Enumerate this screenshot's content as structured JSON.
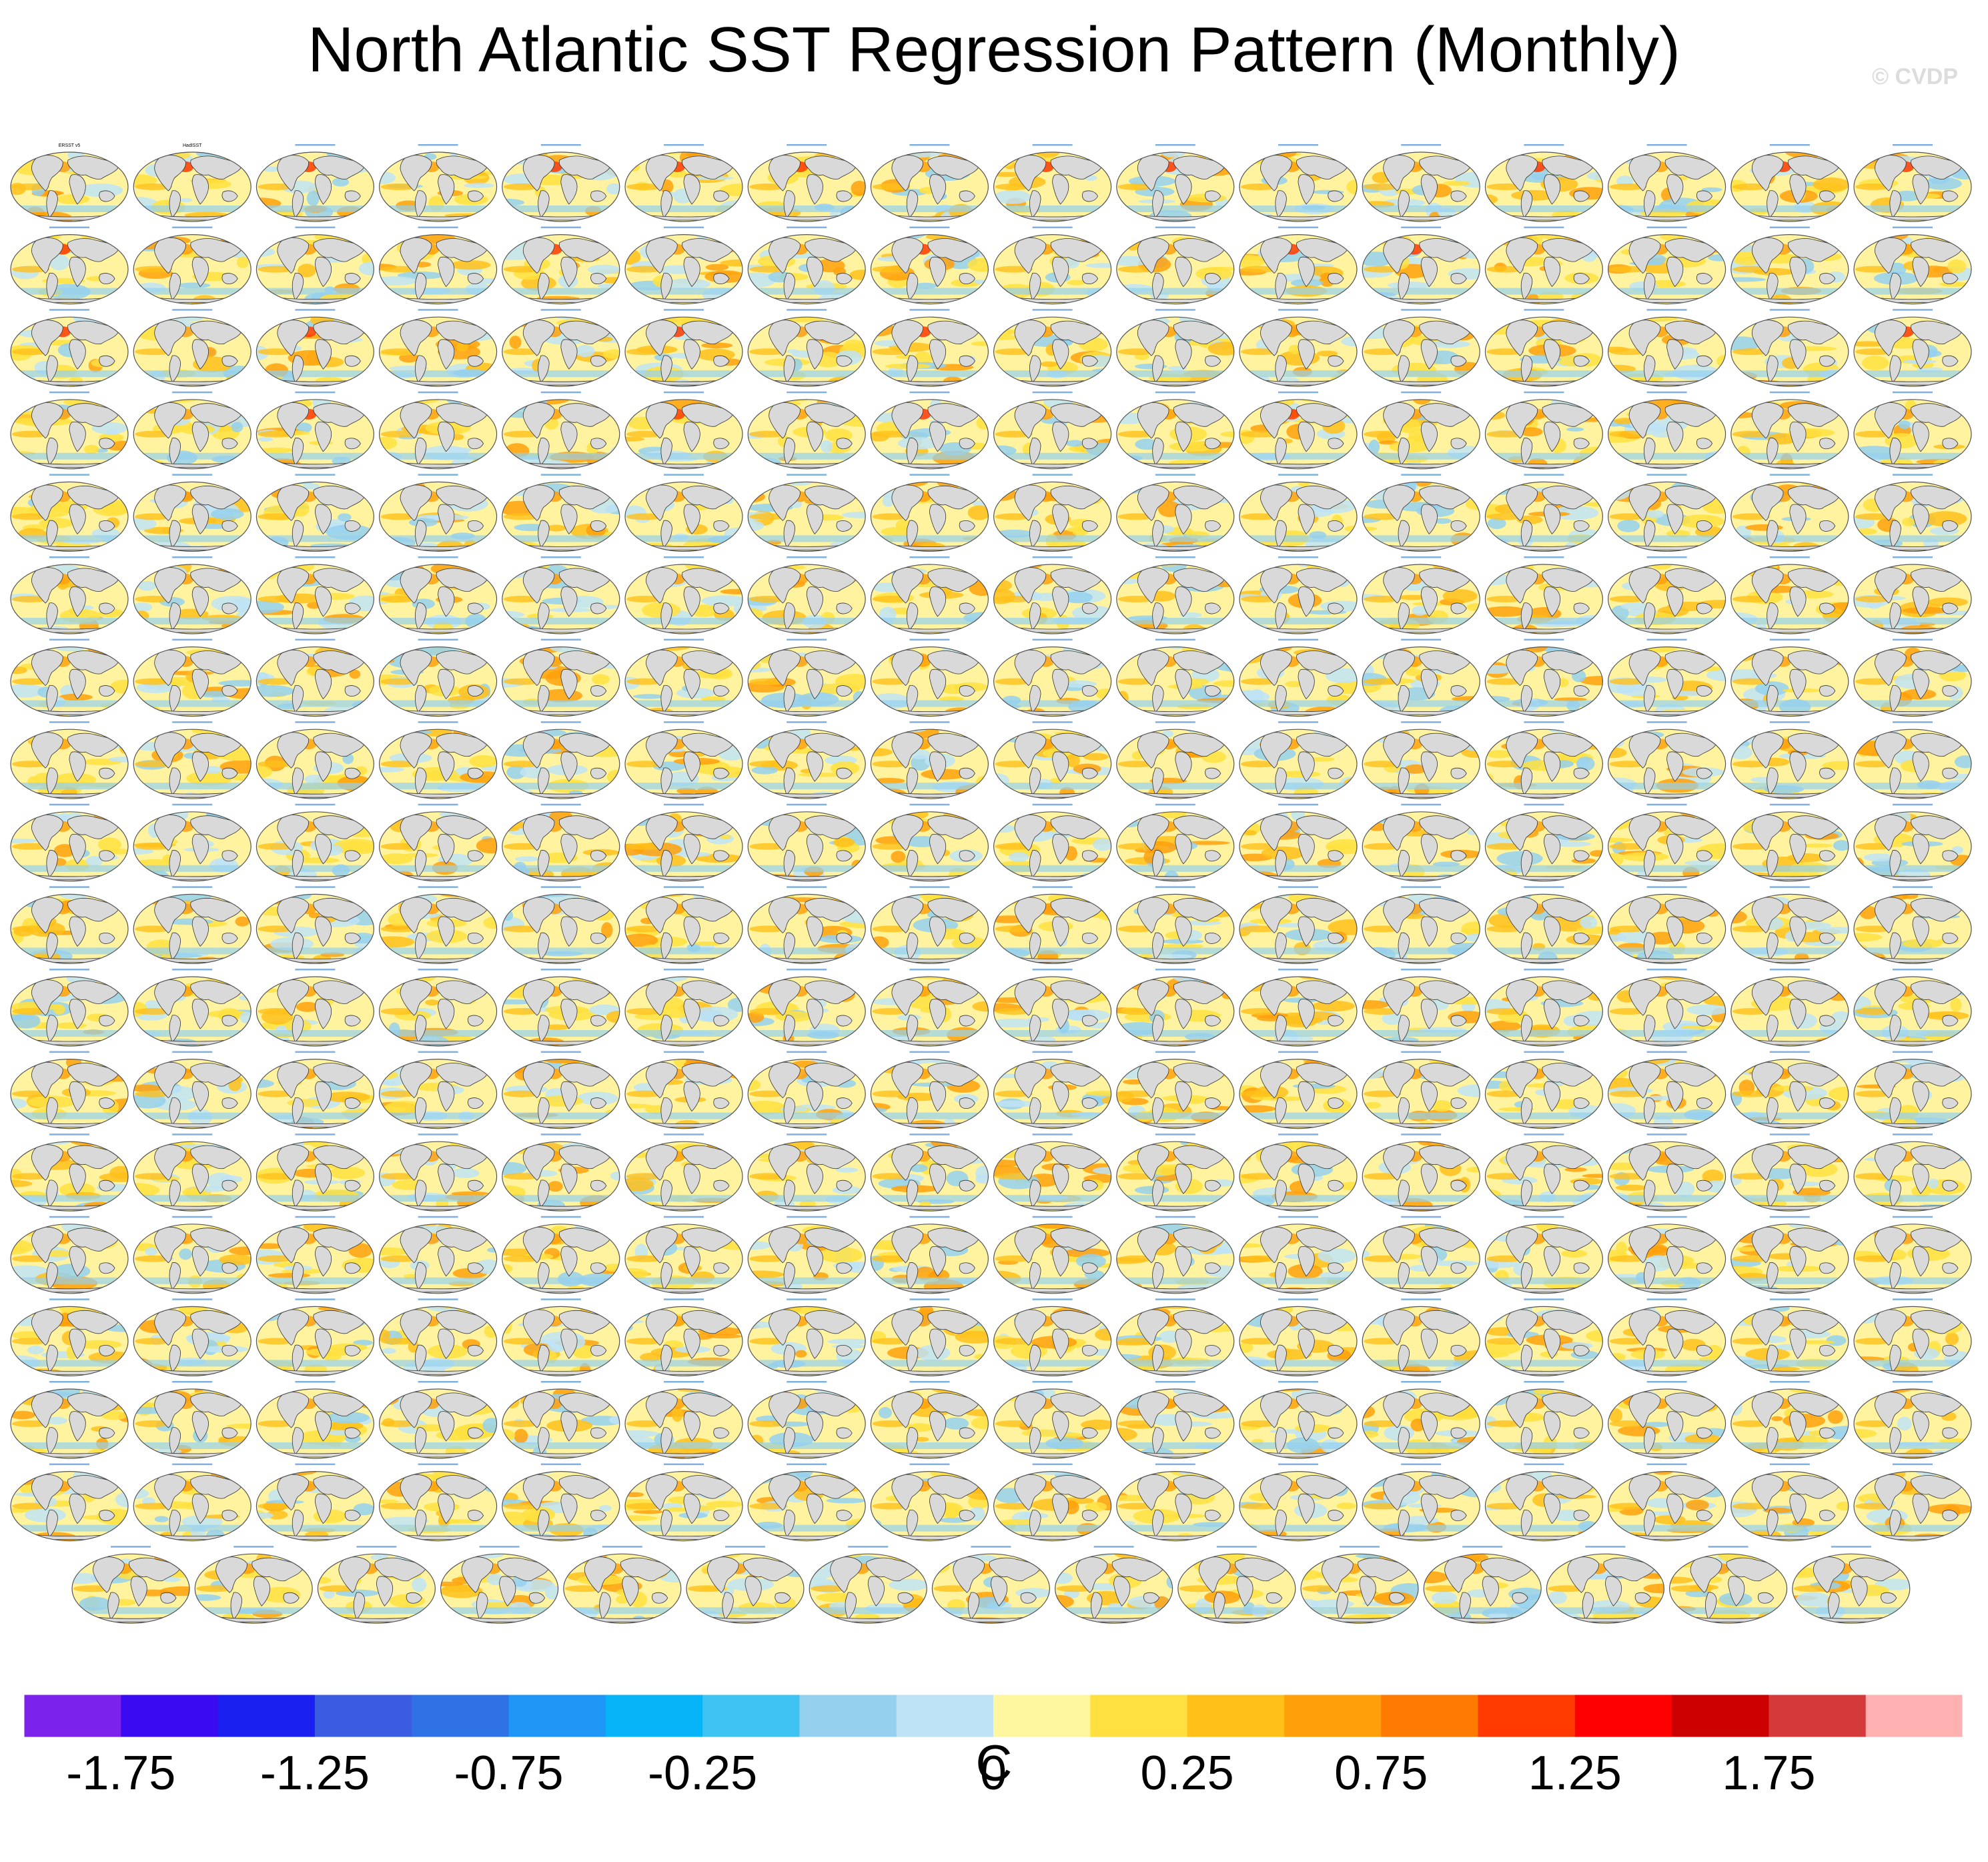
{
  "title": "North Atlantic SST Regression Pattern (Monthly)",
  "watermark": "© CVDP",
  "chart_data": {
    "type": "heatmap",
    "title": "North Atlantic SST Regression Pattern (Monthly)",
    "description_panels": {
      "rows_full": 17,
      "panels_per_full_row": 16,
      "last_row_panels": 15,
      "map_projection": "global ocean map"
    },
    "colorbar": {
      "unit": "C",
      "tick_labels": [
        "-1.75",
        "-1.25",
        "-0.75",
        "-0.25",
        "0",
        "0.25",
        "0.75",
        "1.25",
        "1.75"
      ],
      "colors": [
        "#7b22ec",
        "#3a0af0",
        "#1a20f0",
        "#3a5ce0",
        "#2f72e6",
        "#1e96f5",
        "#08b4f8",
        "#3ec2f2",
        "#95d0ee",
        "#bfe3f6",
        "#fff6a0",
        "#ffe040",
        "#ffc01a",
        "#ffa00a",
        "#ff7a00",
        "#ff3a00",
        "#ff0000",
        "#cc0000",
        "#d43a3a",
        "#ffb0b0"
      ]
    },
    "panel_labels": [
      "ERSST v5",
      "HadISST"
    ]
  }
}
